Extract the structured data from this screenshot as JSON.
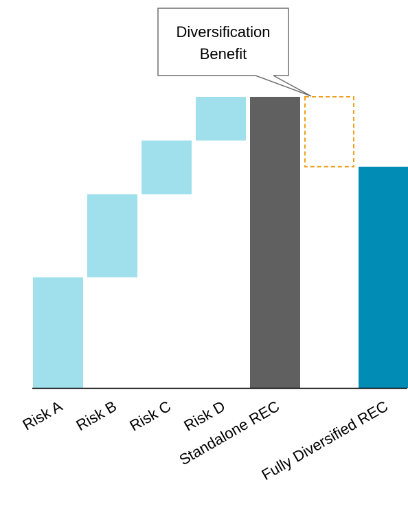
{
  "chart_data": {
    "type": "waterfall",
    "categories": [
      "Risk A",
      "Risk B",
      "Risk C",
      "Risk D",
      "Standalone REC",
      "",
      "Fully Diversified REC"
    ],
    "bars": [
      {
        "label": "Risk A",
        "kind": "increment",
        "start": 0,
        "end": 38,
        "color": "#a0e0ec"
      },
      {
        "label": "Risk B",
        "kind": "increment",
        "start": 38,
        "end": 66.5,
        "color": "#a0e0ec"
      },
      {
        "label": "Risk C",
        "kind": "increment",
        "start": 66.5,
        "end": 85,
        "color": "#a0e0ec"
      },
      {
        "label": "Risk D",
        "kind": "increment",
        "start": 85,
        "end": 100,
        "color": "#a0e0ec"
      },
      {
        "label": "Standalone REC",
        "kind": "total",
        "start": 0,
        "end": 100,
        "color": "#606060"
      },
      {
        "label": "",
        "kind": "reduction",
        "start": 76,
        "end": 100,
        "color": "#f0a020",
        "dashed": true
      },
      {
        "label": "Fully Diversified REC",
        "kind": "total",
        "start": 0,
        "end": 76,
        "color": "#008cb4"
      }
    ],
    "ylim": [
      0,
      100
    ],
    "annotation": {
      "line1": "Diversification",
      "line2": "Benefit"
    },
    "title": "",
    "xlabel": "",
    "ylabel": "",
    "grid": false,
    "axis_color": "#000000"
  }
}
